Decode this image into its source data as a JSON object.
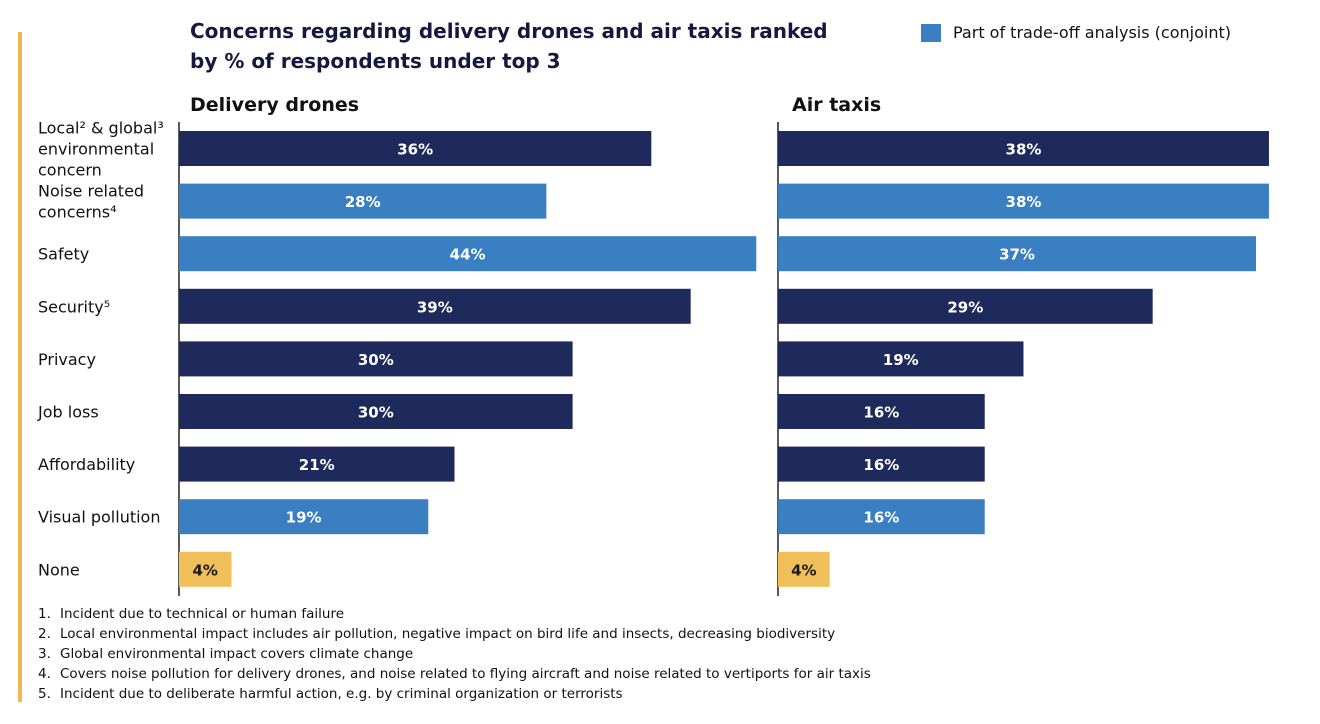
{
  "title_lines": [
    "Concerns regarding delivery drones and air taxis ranked",
    "by % of respondents under top 3"
  ],
  "legend": {
    "label": "Part of trade-off analysis (conjoint)",
    "color": "#3a7fc1"
  },
  "colors": {
    "dark": "#1f2a5c",
    "light": "#3a7fc1",
    "none": "#f0bf5a",
    "accent": "#f0b84f"
  },
  "chart_data": [
    {
      "type": "bar",
      "orientation": "horizontal",
      "title": "Delivery drones",
      "categories": [
        "Local² & global³ environmental concern",
        "Noise related concerns⁴",
        "Safety",
        "Security⁵",
        "Privacy",
        "Job loss",
        "Affordability",
        "Visual pollution",
        "None"
      ],
      "values": [
        36,
        28,
        44,
        39,
        30,
        30,
        21,
        19,
        4
      ],
      "labels": [
        "36%",
        "28%",
        "44%",
        "39%",
        "30%",
        "30%",
        "21%",
        "19%",
        "4%"
      ],
      "bar_types": [
        "dark",
        "light",
        "light",
        "dark",
        "dark",
        "dark",
        "dark",
        "light",
        "none"
      ],
      "unit": "%"
    },
    {
      "type": "bar",
      "orientation": "horizontal",
      "title": "Air taxis",
      "categories": [
        "Local² & global³ environmental concern",
        "Noise related concerns⁴",
        "Safety",
        "Security⁵",
        "Privacy",
        "Job loss",
        "Affordability",
        "Visual pollution",
        "None"
      ],
      "values": [
        38,
        38,
        37,
        29,
        19,
        16,
        16,
        16,
        4
      ],
      "labels": [
        "38%",
        "38%",
        "37%",
        "29%",
        "19%",
        "16%",
        "16%",
        "16%",
        "4%"
      ],
      "bar_types": [
        "dark",
        "light",
        "light",
        "dark",
        "dark",
        "dark",
        "dark",
        "light",
        "none"
      ],
      "unit": "%"
    }
  ],
  "category_label_lines": [
    [
      "Local² & global³",
      "environmental",
      "concern"
    ],
    [
      "Noise related",
      "concerns⁴"
    ],
    [
      "Safety"
    ],
    [
      "Security⁵"
    ],
    [
      "Privacy"
    ],
    [
      "Job loss"
    ],
    [
      "Affordability"
    ],
    [
      "Visual pollution"
    ],
    [
      "None"
    ]
  ],
  "footnotes": [
    {
      "num": "1.",
      "text": "Incident due to technical or human failure"
    },
    {
      "num": "2.",
      "text": "Local environmental impact includes air pollution, negative impact on bird life and insects, decreasing biodiversity"
    },
    {
      "num": "3.",
      "text": "Global environmental impact covers climate change"
    },
    {
      "num": "4.",
      "text": "Covers noise pollution for delivery drones, and noise related to flying aircraft and noise related to vertiports for air taxis"
    },
    {
      "num": "5.",
      "text": "Incident due to deliberate harmful action, e.g. by criminal organization or terrorists"
    }
  ]
}
